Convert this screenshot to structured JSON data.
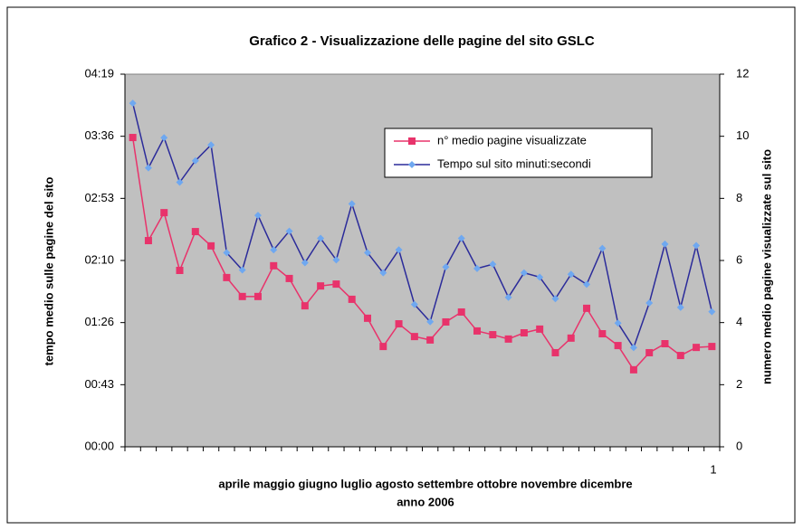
{
  "chart_data": {
    "type": "line",
    "title": "Grafico 2 - Visualizzazione delle pagine del sito GSLC",
    "y_label": "tempo medio sulle pagine del sito",
    "y2_label": "numero medio pagine visualizzate sul sito",
    "x_label": "aprile maggio giugno luglio agosto settembre ottobre novembre dicembre",
    "x_label_line2": "anno 2006",
    "annotation": "1",
    "categories": [
      null,
      null,
      null,
      null,
      null,
      null,
      null,
      null,
      null,
      null,
      null,
      null,
      null,
      null,
      null,
      null,
      null,
      null,
      null,
      null,
      null,
      null,
      null,
      null,
      null,
      null,
      null,
      null,
      null,
      null,
      null,
      null,
      null,
      null,
      null,
      null,
      null,
      null
    ],
    "ylim": [
      0,
      259.2
    ],
    "yticks": [
      {
        "value": 0,
        "label": "00:00"
      },
      {
        "value": 43.2,
        "label": "00:43"
      },
      {
        "value": 86.4,
        "label": "01:26"
      },
      {
        "value": 129.6,
        "label": "02:10"
      },
      {
        "value": 172.8,
        "label": "02:53"
      },
      {
        "value": 216,
        "label": "03:36"
      },
      {
        "value": 259.2,
        "label": "04:19"
      }
    ],
    "y2lim": [
      0,
      12
    ],
    "y2ticks": [
      0,
      2,
      4,
      6,
      8,
      10,
      12
    ],
    "legend": "upper right",
    "series": [
      {
        "name": "n° medio pagine visualizzate",
        "color": "#e8336b",
        "marker": "square",
        "axis": "y2",
        "values": [
          9.96,
          6.64,
          7.54,
          5.68,
          6.93,
          6.47,
          5.45,
          4.84,
          4.84,
          5.83,
          5.42,
          4.54,
          5.18,
          5.24,
          4.75,
          4.14,
          3.23,
          3.96,
          3.55,
          3.44,
          4.02,
          4.34,
          3.73,
          3.61,
          3.47,
          3.67,
          3.79,
          3.03,
          3.5,
          4.46,
          3.64,
          3.26,
          2.48,
          3.03,
          3.32,
          2.94,
          3.2,
          3.23
        ]
      },
      {
        "name": "Tempo sul sito minuti:secondi",
        "color": "#2b2b9a",
        "marker": "diamond",
        "marker_color": "#6fa8f0",
        "values": [
          239,
          194,
          215,
          184,
          199,
          210,
          135,
          123,
          161,
          137,
          150,
          128,
          145,
          130,
          169,
          135,
          121,
          137,
          99,
          87,
          125,
          145,
          124,
          127,
          104,
          121,
          118,
          103,
          120,
          113,
          138,
          86,
          69,
          100,
          141,
          97,
          140,
          94
        ]
      }
    ]
  }
}
